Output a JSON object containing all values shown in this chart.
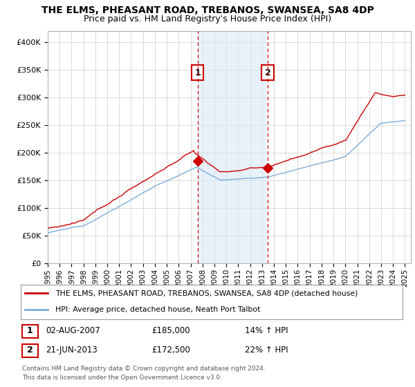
{
  "title": "THE ELMS, PHEASANT ROAD, TREBANOS, SWANSEA, SA8 4DP",
  "subtitle": "Price paid vs. HM Land Registry's House Price Index (HPI)",
  "yticks": [
    0,
    50000,
    100000,
    150000,
    200000,
    250000,
    300000,
    350000,
    400000
  ],
  "ytick_labels": [
    "£0",
    "£50K",
    "£100K",
    "£150K",
    "£200K",
    "£250K",
    "£300K",
    "£350K",
    "£400K"
  ],
  "ylim": [
    0,
    420000
  ],
  "xlim": [
    1995,
    2025.5
  ],
  "sale1_x": 2007.58,
  "sale1_price": 185000,
  "sale1_label": "1",
  "sale1_date": "02-AUG-2007",
  "sale1_pct": "14%",
  "sale2_x": 2013.47,
  "sale2_price": 172500,
  "sale2_label": "2",
  "sale2_date": "21-JUN-2013",
  "sale2_pct": "22%",
  "legend_line1": "THE ELMS, PHEASANT ROAD, TREBANOS, SWANSEA, SA8 4DP (detached house)",
  "legend_line2": "HPI: Average price, detached house, Neath Port Talbot",
  "footer1": "Contains HM Land Registry data © Crown copyright and database right 2024.",
  "footer2": "This data is licensed under the Open Government Licence v3.0.",
  "house_color": "#cc0000",
  "hpi_color": "#7aaddc",
  "shade_color": "#d8e8f5",
  "vline_color": "#cc0000",
  "bg_color": "#ffffff",
  "grid_color": "#cccccc"
}
